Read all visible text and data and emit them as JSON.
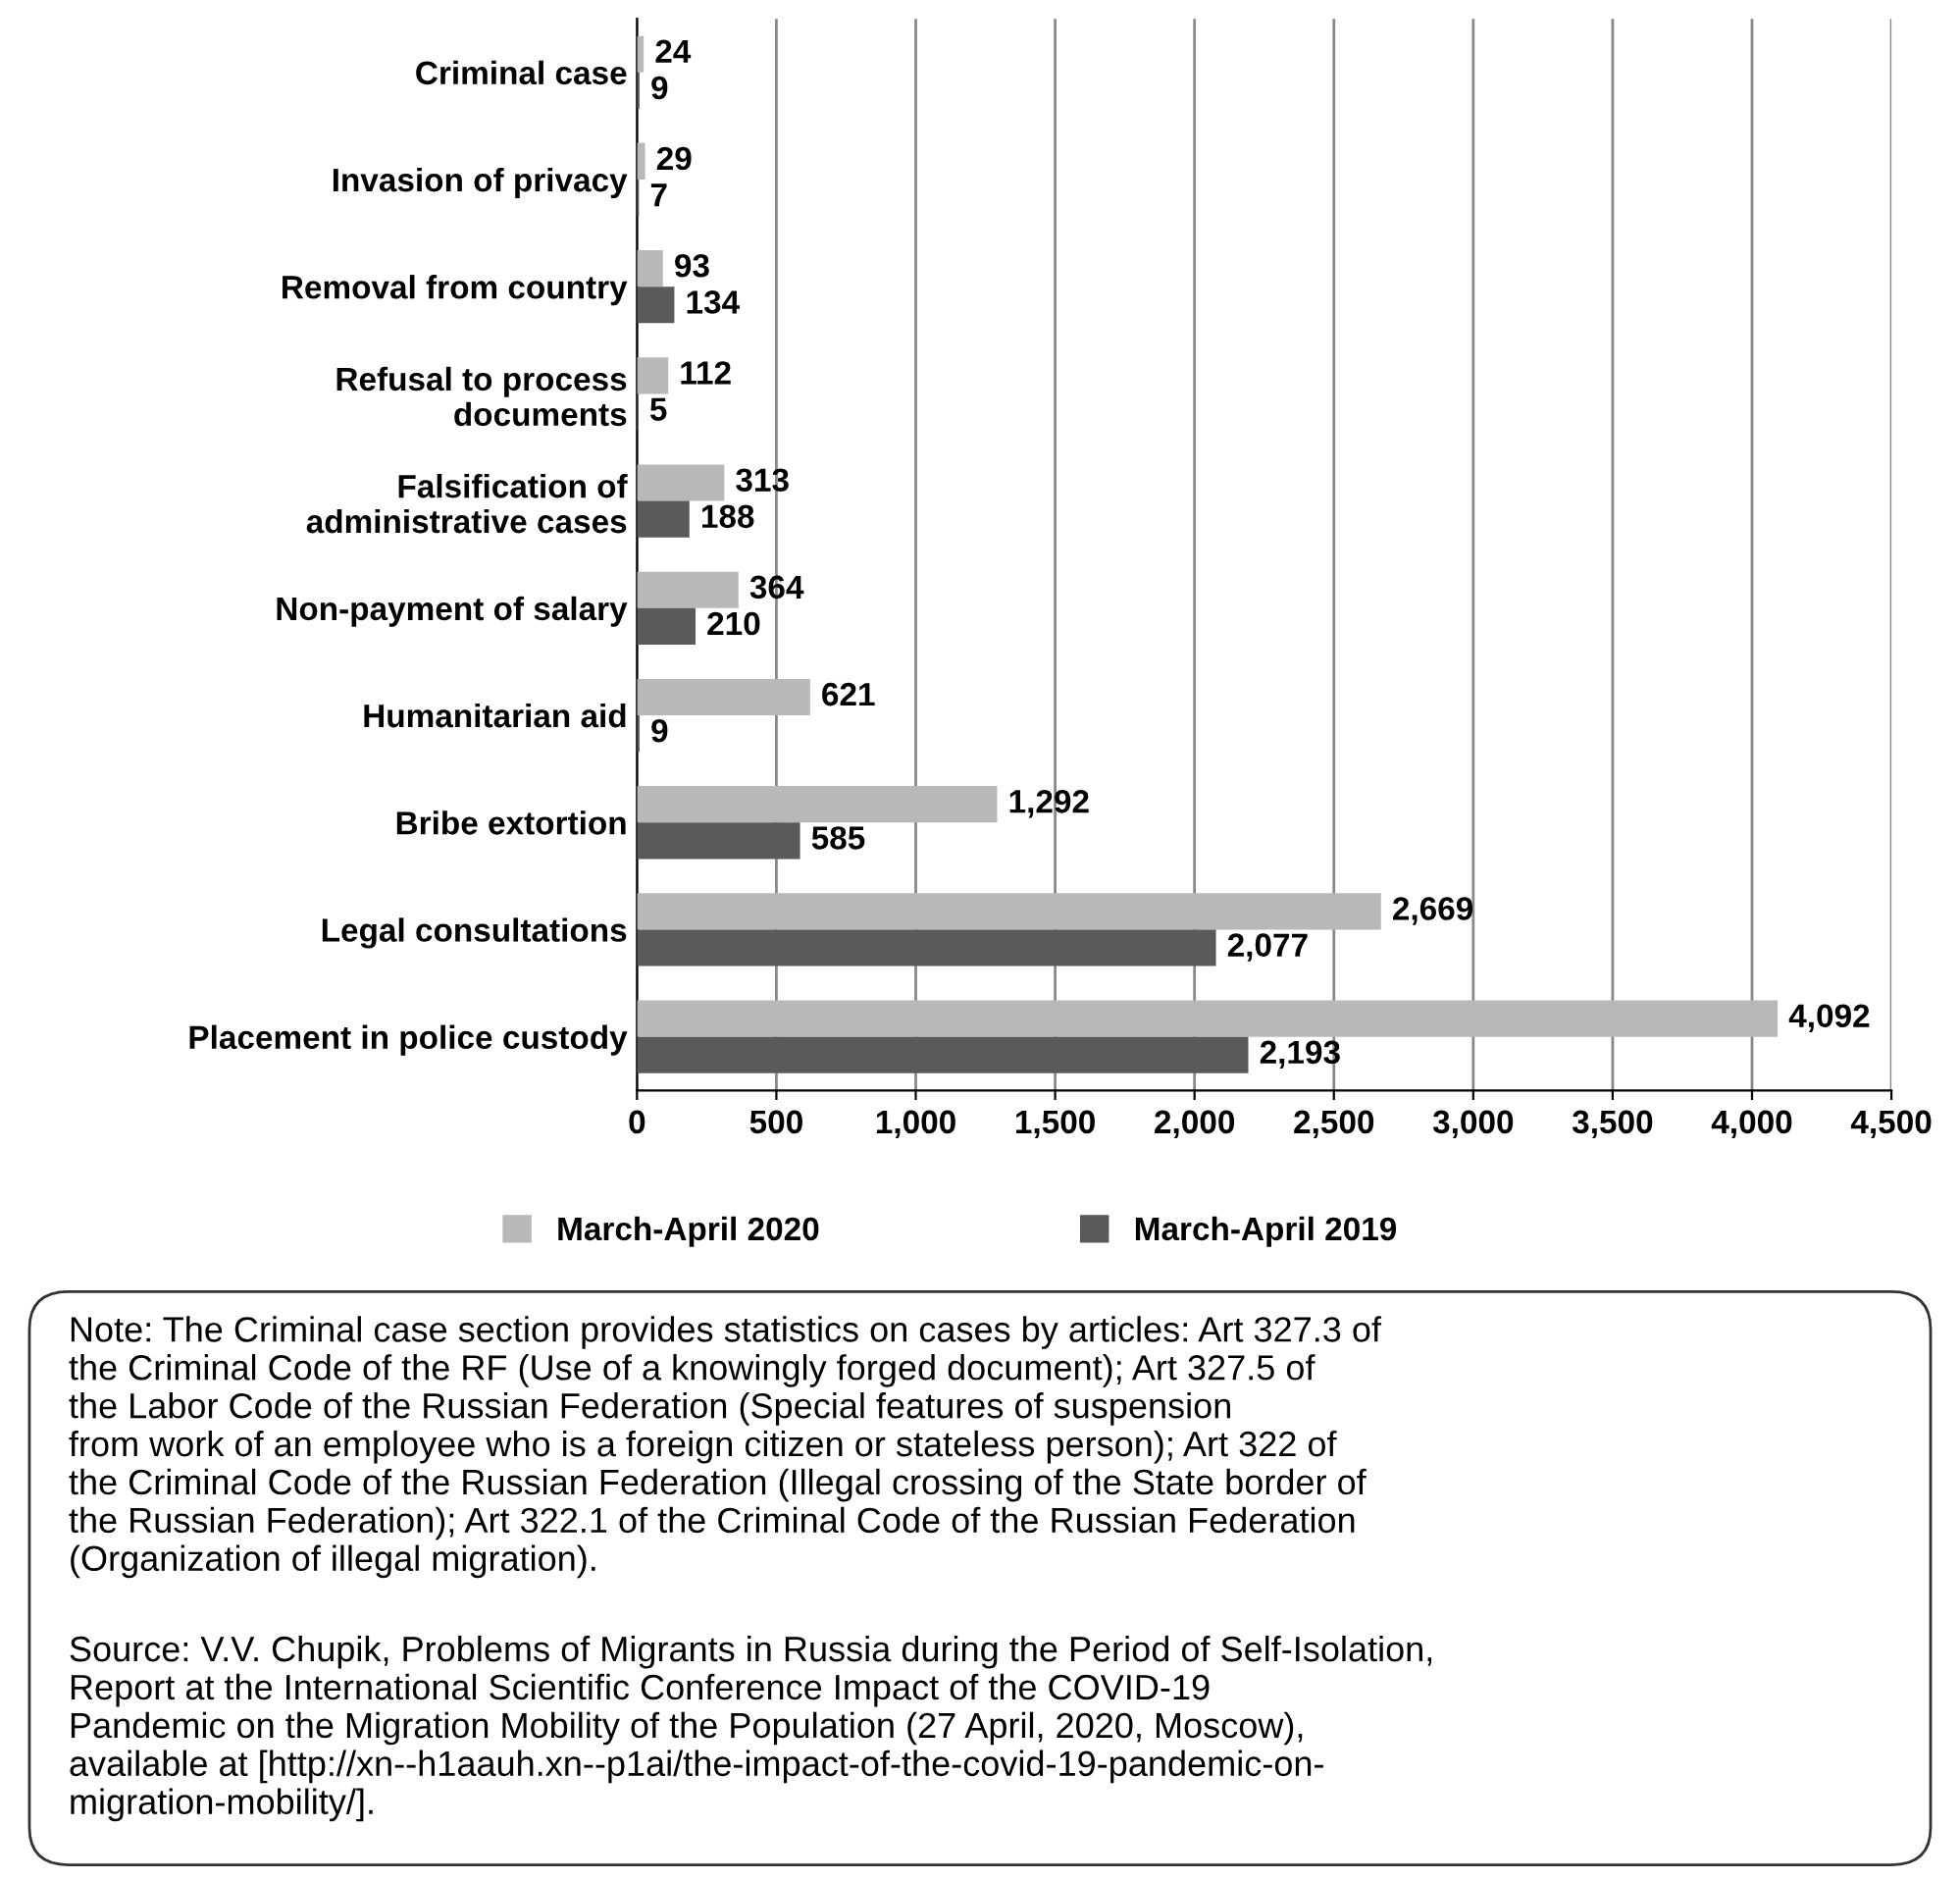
{
  "chart_data": {
    "type": "bar",
    "orientation": "horizontal",
    "categories": [
      "Criminal case",
      "Invasion of privacy",
      "Removal from country",
      "Refusal to process\ndocuments",
      "Falsification of\nadministrative cases",
      "Non-payment of salary",
      "Humanitarian aid",
      "Bribe extortion",
      "Legal consultations",
      "Placement in police custody"
    ],
    "series": [
      {
        "name": "March-April 2020",
        "color": "#b8b8b8",
        "values": [
          24,
          29,
          93,
          112,
          313,
          364,
          621,
          1292,
          2669,
          4092
        ],
        "value_labels": [
          "24",
          "29",
          "93",
          "112",
          "313",
          "364",
          "621",
          "1,292",
          "2,669",
          "4,092"
        ]
      },
      {
        "name": "March-April 2019",
        "color": "#5a5a5a",
        "values": [
          9,
          7,
          134,
          5,
          188,
          210,
          9,
          585,
          2077,
          2193
        ],
        "value_labels": [
          "9",
          "7",
          "134",
          "5",
          "188",
          "210",
          "9",
          "585",
          "2,077",
          "2,193"
        ]
      }
    ],
    "xlim": [
      0,
      4500
    ],
    "xticks": [
      0,
      500,
      {
        "value": 1000,
        "label": "1,000"
      },
      {
        "value": 1500,
        "label": "1,500"
      },
      {
        "value": 2000,
        "label": "2,000"
      },
      {
        "value": 2500,
        "label": "2,500"
      },
      {
        "value": 3000,
        "label": "3,000"
      },
      {
        "value": 3500,
        "label": "3,500"
      },
      {
        "value": 4000,
        "label": "4,000"
      },
      {
        "value": 4500,
        "label": "4,500"
      }
    ],
    "grid": "x",
    "legend": "bottom",
    "annotations": [
      "Note: The Criminal case section provides statistics on cases by articles: Art 327.3 of\nthe Criminal Code of the RF (Use of a knowingly forged document); Art 327.5 of\nthe Labor Code of the Russian Federation (Special features of suspension\nfrom work of an employee who is a foreign citizen or stateless person); Art 322 of\nthe Criminal Code of the Russian Federation (Illegal crossing of the State border of\nthe Russian Federation); Art 322.1 of the Criminal Code of the Russian Federation\n(Organization of illegal migration).",
      "Source: V.V. Chupik, Problems of Migrants in Russia during the Period of Self-Isolation,\nReport at the International Scientific Conference Impact of the COVID-19\nPandemic on the Migration Mobility of the Population (27 April, 2020, Moscow),\navailable at [http://xn--h1aauh.xn--p1ai/the-impact-of-the-covid-19-pandemic-on-\nmigration-mobility/]."
    ]
  }
}
